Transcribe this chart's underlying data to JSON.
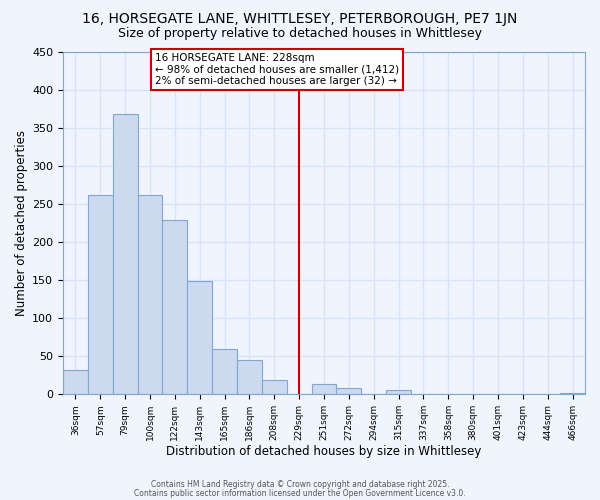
{
  "title": "16, HORSEGATE LANE, WHITTLESEY, PETERBOROUGH, PE7 1JN",
  "subtitle": "Size of property relative to detached houses in Whittlesey",
  "xlabel": "Distribution of detached houses by size in Whittlesey",
  "ylabel": "Number of detached properties",
  "bar_color": "#ccd9ee",
  "bar_edge_color": "#7fa8d0",
  "bin_labels": [
    "36sqm",
    "57sqm",
    "79sqm",
    "100sqm",
    "122sqm",
    "143sqm",
    "165sqm",
    "186sqm",
    "208sqm",
    "229sqm",
    "251sqm",
    "272sqm",
    "294sqm",
    "315sqm",
    "337sqm",
    "358sqm",
    "380sqm",
    "401sqm",
    "423sqm",
    "444sqm",
    "466sqm"
  ],
  "bar_heights": [
    32,
    262,
    368,
    261,
    229,
    149,
    60,
    45,
    19,
    0,
    13,
    8,
    0,
    5,
    0,
    0,
    0,
    0,
    0,
    0,
    2
  ],
  "ylim": [
    0,
    450
  ],
  "yticks": [
    0,
    50,
    100,
    150,
    200,
    250,
    300,
    350,
    400,
    450
  ],
  "vline_x": 9,
  "vline_color": "#cc0000",
  "annotation_title": "16 HORSEGATE LANE: 228sqm",
  "annotation_line1": "← 98% of detached houses are smaller (1,412)",
  "annotation_line2": "2% of semi-detached houses are larger (32) →",
  "footer1": "Contains HM Land Registry data © Crown copyright and database right 2025.",
  "footer2": "Contains public sector information licensed under the Open Government Licence v3.0.",
  "bg_color": "#f0f4ff",
  "grid_color": "#d8e4f8",
  "title_fontsize": 10,
  "subtitle_fontsize": 9
}
